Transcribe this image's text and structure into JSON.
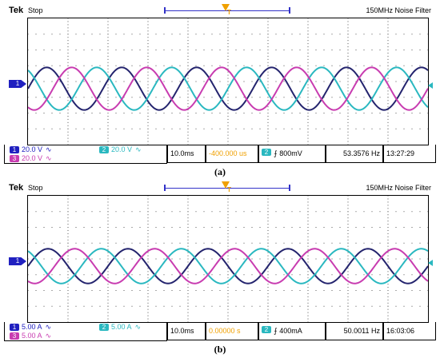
{
  "colors": {
    "ch1": "#24246e",
    "ch2": "#2ab8c0",
    "ch3": "#c83cb0",
    "trigger": "#f0a000",
    "grid": "#555555"
  },
  "panels": [
    {
      "caption": "(a)",
      "header": {
        "brand": "Tek",
        "state": "Stop",
        "filter": "150MHz Noise Filter",
        "trigger_marker": "T"
      },
      "ch1_marker": "1",
      "channels": {
        "ch1": {
          "num": "1",
          "scale": "20.0 V",
          "coupling": "∿"
        },
        "ch2": {
          "num": "2",
          "scale": "20.0 V",
          "coupling": "∿"
        },
        "ch3": {
          "num": "3",
          "scale": "20.0 V",
          "coupling": "∿"
        }
      },
      "timebase": "10.0ms",
      "trigger_pos": "-400.000 us",
      "trigger": {
        "num": "2",
        "level": "⨍ 800mV"
      },
      "frequency": "53.3576 Hz",
      "time": "13:27:29"
    },
    {
      "caption": "(b)",
      "header": {
        "brand": "Tek",
        "state": "Stop",
        "filter": "150MHz Noise Filter",
        "trigger_marker": "T"
      },
      "ch1_marker": "1",
      "channels": {
        "ch1": {
          "num": "1",
          "scale": "5.00 A",
          "coupling": "∿"
        },
        "ch2": {
          "num": "2",
          "scale": "5.00 A",
          "coupling": "∿"
        },
        "ch3": {
          "num": "3",
          "scale": "5.00 A",
          "coupling": "∿"
        }
      },
      "timebase": "10.0ms",
      "trigger_pos": "0.00000 s",
      "trigger": {
        "num": "2",
        "level": "⨍ 400mA"
      },
      "frequency": "50.0011 Hz",
      "time": "16:03:06"
    }
  ],
  "chart_data": [
    {
      "type": "line",
      "title": "",
      "xlabel": "",
      "ylabel": "",
      "x_divisions": 10,
      "y_divisions": 8,
      "time_per_div_ms": 10.0,
      "grid": true,
      "series": [
        {
          "channel": "1",
          "waveform": "sine",
          "frequency_hz": 53.3576,
          "amplitude_div": 1.35,
          "phase_deg": 0
        },
        {
          "channel": "2",
          "waveform": "sine",
          "frequency_hz": 53.3576,
          "amplitude_div": 1.35,
          "phase_deg": 120
        },
        {
          "channel": "3",
          "waveform": "sine",
          "frequency_hz": 53.3576,
          "amplitude_div": 1.35,
          "phase_deg": 240
        }
      ]
    },
    {
      "type": "line",
      "title": "",
      "xlabel": "",
      "ylabel": "",
      "x_divisions": 10,
      "y_divisions": 8,
      "time_per_div_ms": 10.0,
      "grid": true,
      "series": [
        {
          "channel": "1",
          "waveform": "sine",
          "frequency_hz": 50.0011,
          "amplitude_div": 1.1,
          "phase_deg": 0
        },
        {
          "channel": "2",
          "waveform": "sine",
          "frequency_hz": 50.0011,
          "amplitude_div": 1.1,
          "phase_deg": 120
        },
        {
          "channel": "3",
          "waveform": "sine",
          "frequency_hz": 50.0011,
          "amplitude_div": 1.1,
          "phase_deg": 240
        }
      ]
    }
  ]
}
